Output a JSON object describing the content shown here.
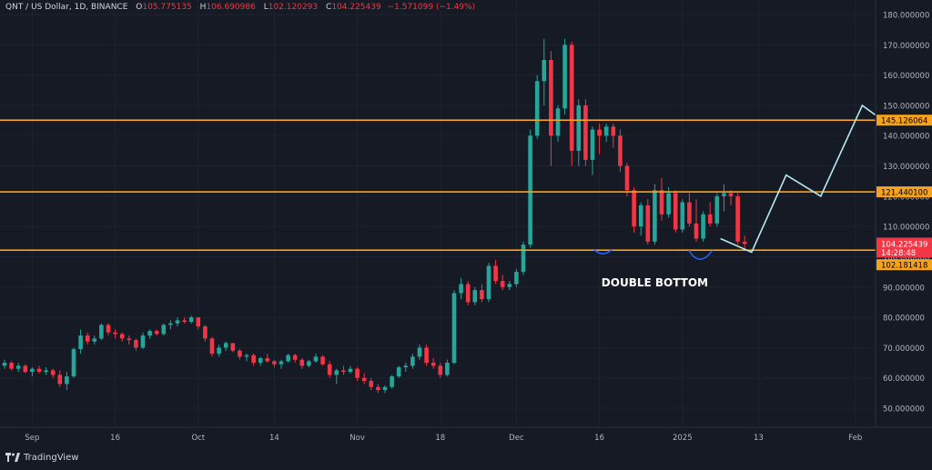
{
  "header": {
    "symbol": "QNT / US Dollar, 1D, BINANCE",
    "o_label": "O",
    "o_value": "105.775135",
    "h_label": "H",
    "h_value": "106.690986",
    "l_label": "L",
    "l_value": "102.120293",
    "c_label": "C",
    "c_value": "104.225439",
    "change": "−1.571099 (−1.49%)"
  },
  "branding": {
    "name": "TradingView"
  },
  "colors": {
    "background": "#161a25",
    "up": "#26a69a",
    "down": "#f23645",
    "level_line": "#f7a21b",
    "projection": "#b2ebf2",
    "curve": "#2962ff"
  },
  "chart_data": {
    "type": "candlestick",
    "title": "QNT / US Dollar, 1D, BINANCE",
    "ylim": [
      43,
      183
    ],
    "y_ticks": [
      "180.000000",
      "170.000000",
      "160.000000",
      "150.000000",
      "140.000000",
      "130.000000",
      "120.000000",
      "110.000000",
      "100.000000",
      "90.000000",
      "80.000000",
      "70.000000",
      "60.000000",
      "50.000000"
    ],
    "y_tick_values": [
      180,
      170,
      160,
      150,
      140,
      130,
      120,
      110,
      100,
      90,
      80,
      70,
      60,
      50
    ],
    "x_labels": [
      "Sep",
      "16",
      "Oct",
      "14",
      "Nov",
      "18",
      "Dec",
      "16",
      "2025",
      "13",
      "Feb"
    ],
    "x_label_index": [
      4,
      16,
      28,
      39,
      51,
      63,
      74,
      86,
      98,
      109,
      123
    ],
    "bar_count": 126,
    "x_last_date": "2025-01-04",
    "ohlc": [
      [
        64,
        66,
        63,
        65
      ],
      [
        65,
        65.5,
        62.5,
        63
      ],
      [
        63,
        65,
        62,
        64
      ],
      [
        64,
        64.5,
        61.5,
        62
      ],
      [
        62,
        63.5,
        60.5,
        63
      ],
      [
        63,
        64,
        61.5,
        62
      ],
      [
        62,
        63.5,
        61,
        62.5
      ],
      [
        62.5,
        63,
        60,
        61
      ],
      [
        61,
        62.5,
        57,
        58
      ],
      [
        58,
        62,
        56,
        60.5
      ],
      [
        60.5,
        70,
        60,
        69.5
      ],
      [
        69.5,
        76,
        68,
        74
      ],
      [
        74,
        75,
        71,
        72
      ],
      [
        72,
        74,
        71,
        73
      ],
      [
        73,
        78,
        72.5,
        77.5
      ],
      [
        77.5,
        78,
        74,
        75
      ],
      [
        75,
        76,
        73,
        74.5
      ],
      [
        74.5,
        75,
        72,
        73
      ],
      [
        73,
        74,
        71,
        72.5
      ],
      [
        72.5,
        73,
        69,
        70
      ],
      [
        70,
        75,
        69.5,
        74
      ],
      [
        74,
        76,
        73,
        75.5
      ],
      [
        75.5,
        76,
        74,
        74.5
      ],
      [
        74.5,
        78,
        74,
        77.5
      ],
      [
        77.5,
        79,
        76,
        78
      ],
      [
        78,
        80,
        77,
        79
      ],
      [
        79,
        80,
        78,
        78.5
      ],
      [
        78.5,
        80.5,
        78,
        80
      ],
      [
        80,
        80,
        76,
        77
      ],
      [
        77,
        77.5,
        72,
        73
      ],
      [
        73,
        73.5,
        67,
        68
      ],
      [
        68,
        71,
        67,
        70
      ],
      [
        70,
        72,
        69,
        71.5
      ],
      [
        71.5,
        71.5,
        68.5,
        69
      ],
      [
        69,
        69.5,
        66,
        67
      ],
      [
        67,
        68,
        65.5,
        67.5
      ],
      [
        67.5,
        68,
        64,
        65
      ],
      [
        65,
        67,
        64,
        66.5
      ],
      [
        66.5,
        68,
        65,
        65.5
      ],
      [
        65.5,
        66,
        63.5,
        64.5
      ],
      [
        64.5,
        66,
        63,
        65.5
      ],
      [
        65.5,
        68,
        65,
        67.5
      ],
      [
        67.5,
        68,
        65,
        66
      ],
      [
        66,
        66.5,
        63,
        64
      ],
      [
        64,
        66,
        63.5,
        65.5
      ],
      [
        65.5,
        68,
        65,
        67
      ],
      [
        67,
        67.5,
        64,
        64.5
      ],
      [
        64.5,
        65.5,
        60,
        61
      ],
      [
        61,
        63,
        58,
        62.5
      ],
      [
        62.5,
        64,
        61,
        62
      ],
      [
        62,
        64,
        61.5,
        63
      ],
      [
        63,
        63.5,
        59,
        60
      ],
      [
        60,
        61.5,
        58,
        59
      ],
      [
        59,
        60,
        56,
        57
      ],
      [
        57,
        58,
        55,
        56
      ],
      [
        56,
        57.5,
        55,
        57
      ],
      [
        57,
        61,
        56.5,
        60.5
      ],
      [
        60.5,
        64,
        60,
        63.5
      ],
      [
        63.5,
        65,
        62,
        64
      ],
      [
        64,
        68,
        63,
        67
      ],
      [
        67,
        71,
        66,
        70
      ],
      [
        70,
        71,
        64,
        65
      ],
      [
        65,
        66.5,
        63,
        64
      ],
      [
        64,
        65,
        60,
        61
      ],
      [
        61,
        66,
        60.5,
        65
      ],
      [
        65,
        89,
        64.5,
        88
      ],
      [
        88,
        93,
        86,
        91
      ],
      [
        91,
        92,
        84,
        85
      ],
      [
        85,
        90,
        84,
        89
      ],
      [
        89,
        91,
        85,
        86
      ],
      [
        86,
        98,
        85,
        97
      ],
      [
        97,
        99,
        91,
        92
      ],
      [
        92,
        94,
        89,
        90
      ],
      [
        90,
        92,
        89,
        91
      ],
      [
        91,
        96,
        90,
        95
      ],
      [
        95,
        105,
        94,
        104
      ],
      [
        104,
        142,
        103,
        140
      ],
      [
        140,
        160,
        139,
        158
      ],
      [
        158,
        172,
        150,
        165
      ],
      [
        165,
        168,
        130,
        140
      ],
      [
        140,
        150,
        138,
        149
      ],
      [
        149,
        172,
        147,
        170
      ],
      [
        170,
        171,
        130,
        135
      ],
      [
        135,
        152,
        130,
        150
      ],
      [
        150,
        152,
        130,
        132
      ],
      [
        132,
        143,
        127,
        142
      ],
      [
        142,
        144,
        134,
        140
      ],
      [
        140,
        144,
        138,
        143
      ],
      [
        143,
        144,
        136,
        140
      ],
      [
        140,
        142,
        128,
        130
      ],
      [
        130,
        131,
        120,
        122
      ],
      [
        122,
        123,
        108,
        110
      ],
      [
        110,
        118,
        107,
        117
      ],
      [
        117,
        119,
        104,
        105
      ],
      [
        105,
        124,
        104,
        122
      ],
      [
        122,
        126,
        112,
        114
      ],
      [
        114,
        123,
        113,
        121
      ],
      [
        121,
        122,
        108,
        109
      ],
      [
        109,
        119,
        108,
        118
      ],
      [
        118,
        121,
        110,
        111
      ],
      [
        111,
        119,
        105,
        106
      ],
      [
        106,
        115,
        105,
        114
      ],
      [
        114,
        118,
        110,
        111
      ],
      [
        111,
        121,
        110,
        120
      ],
      [
        120,
        124,
        115,
        121
      ],
      [
        121,
        122,
        117,
        120
      ],
      [
        120,
        121,
        104,
        105
      ],
      [
        105,
        107,
        102.12,
        104.23
      ]
    ],
    "levels": [
      {
        "value": 145.126064,
        "label": "145.126064"
      },
      {
        "value": 121.4401,
        "label": "121.440100"
      },
      {
        "value": 102.181418,
        "label": "102.181418"
      }
    ],
    "current_price": {
      "value": 104.225439,
      "label": "104.225439",
      "countdown": "14:28:48"
    },
    "annotation": "DOUBLE BOTTOM",
    "projection_path": [
      [
        108,
        101.5
      ],
      [
        113,
        127
      ],
      [
        118,
        120
      ],
      [
        124,
        150
      ],
      [
        127,
        145
      ],
      [
        131,
        171
      ]
    ]
  }
}
